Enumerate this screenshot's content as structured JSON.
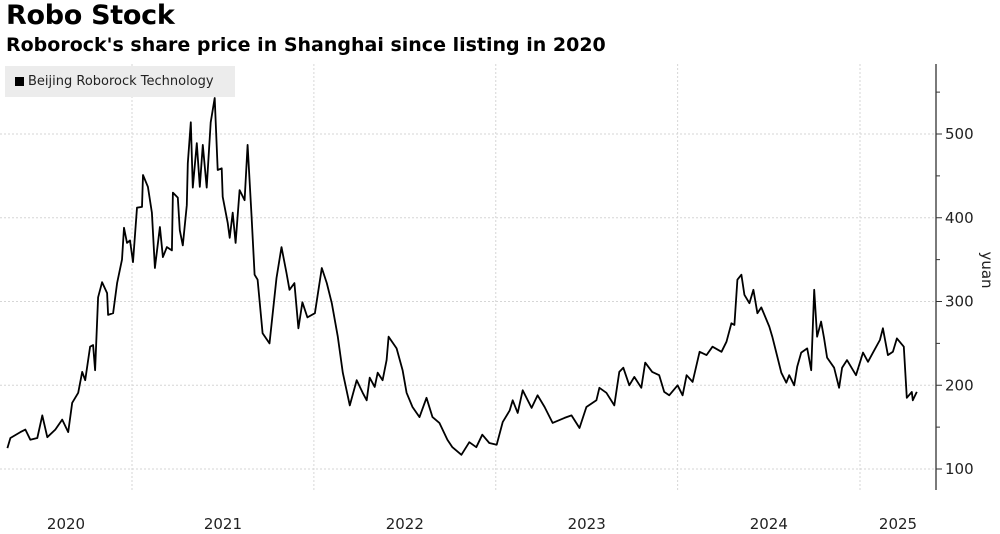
{
  "chart_data": {
    "type": "line",
    "title": "Robo Stock",
    "subtitle": "Roborock's share price in Shanghai since listing in 2020",
    "ylabel": "yuan",
    "xlabel": "",
    "ylim": [
      75,
      584
    ],
    "yticks": [
      100,
      200,
      300,
      400,
      500
    ],
    "xticks": [
      "2020",
      "2021",
      "2022",
      "2023",
      "2024",
      "2025"
    ],
    "y_axis_side": "right",
    "grid": true,
    "legend_position": "top-left",
    "series": [
      {
        "name": "Beijing Roborock Technology",
        "color": "#000000",
        "points": [
          [
            "2020-04-26",
            125
          ],
          [
            "2020-05-02",
            137
          ],
          [
            "2020-05-22",
            144
          ],
          [
            "2020-06-01",
            147
          ],
          [
            "2020-06-11",
            135
          ],
          [
            "2020-06-25",
            137
          ],
          [
            "2020-07-05",
            164
          ],
          [
            "2020-07-15",
            138
          ],
          [
            "2020-07-31",
            147
          ],
          [
            "2020-08-14",
            159
          ],
          [
            "2020-08-26",
            144
          ],
          [
            "2020-09-03",
            179
          ],
          [
            "2020-09-15",
            191
          ],
          [
            "2020-09-23",
            216
          ],
          [
            "2020-09-29",
            206
          ],
          [
            "2020-10-09",
            246
          ],
          [
            "2020-10-15",
            248
          ],
          [
            "2020-10-19",
            218
          ],
          [
            "2020-10-25",
            305
          ],
          [
            "2020-11-02",
            323
          ],
          [
            "2020-11-12",
            310
          ],
          [
            "2020-11-14",
            284
          ],
          [
            "2020-11-24",
            286
          ],
          [
            "2020-12-02",
            322
          ],
          [
            "2020-12-12",
            350
          ],
          [
            "2020-12-16",
            388
          ],
          [
            "2020-12-22",
            370
          ],
          [
            "2020-12-28",
            373
          ],
          [
            "2021-01-03",
            347
          ],
          [
            "2021-01-11",
            412
          ],
          [
            "2021-01-21",
            413
          ],
          [
            "2021-01-23",
            451
          ],
          [
            "2021-02-02",
            437
          ],
          [
            "2021-02-10",
            406
          ],
          [
            "2021-02-16",
            340
          ],
          [
            "2021-02-26",
            389
          ],
          [
            "2021-03-04",
            353
          ],
          [
            "2021-03-12",
            365
          ],
          [
            "2021-03-22",
            361
          ],
          [
            "2021-03-24",
            430
          ],
          [
            "2021-04-03",
            424
          ],
          [
            "2021-04-07",
            385
          ],
          [
            "2021-04-13",
            367
          ],
          [
            "2021-04-21",
            415
          ],
          [
            "2021-04-23",
            465
          ],
          [
            "2021-04-29",
            514
          ],
          [
            "2021-05-03",
            436
          ],
          [
            "2021-05-11",
            489
          ],
          [
            "2021-05-17",
            437
          ],
          [
            "2021-05-23",
            487
          ],
          [
            "2021-05-31",
            436
          ],
          [
            "2021-06-08",
            514
          ],
          [
            "2021-06-16",
            543
          ],
          [
            "2021-06-22",
            457
          ],
          [
            "2021-06-30",
            459
          ],
          [
            "2021-07-02",
            425
          ],
          [
            "2021-07-12",
            394
          ],
          [
            "2021-07-16",
            376
          ],
          [
            "2021-07-22",
            406
          ],
          [
            "2021-07-28",
            370
          ],
          [
            "2021-08-05",
            433
          ],
          [
            "2021-08-15",
            421
          ],
          [
            "2021-08-21",
            487
          ],
          [
            "2021-08-29",
            401
          ],
          [
            "2021-09-04",
            332
          ],
          [
            "2021-09-10",
            326
          ],
          [
            "2021-09-20",
            262
          ],
          [
            "2021-10-04",
            250
          ],
          [
            "2021-10-18",
            328
          ],
          [
            "2021-10-28",
            365
          ],
          [
            "2021-11-07",
            334
          ],
          [
            "2021-11-13",
            314
          ],
          [
            "2021-11-23",
            322
          ],
          [
            "2021-12-01",
            268
          ],
          [
            "2021-12-09",
            299
          ],
          [
            "2021-12-19",
            281
          ],
          [
            "2022-01-03",
            286
          ],
          [
            "2022-01-17",
            340
          ],
          [
            "2022-01-27",
            322
          ],
          [
            "2022-02-06",
            298
          ],
          [
            "2022-02-18",
            258
          ],
          [
            "2022-02-28",
            215
          ],
          [
            "2022-03-14",
            176
          ],
          [
            "2022-03-28",
            206
          ],
          [
            "2022-04-09",
            191
          ],
          [
            "2022-04-17",
            182
          ],
          [
            "2022-04-23",
            209
          ],
          [
            "2022-05-03",
            198
          ],
          [
            "2022-05-09",
            215
          ],
          [
            "2022-05-19",
            206
          ],
          [
            "2022-05-27",
            230
          ],
          [
            "2022-05-31",
            258
          ],
          [
            "2022-06-16",
            244
          ],
          [
            "2022-06-28",
            218
          ],
          [
            "2022-07-06",
            191
          ],
          [
            "2022-07-18",
            174
          ],
          [
            "2022-08-01",
            162
          ],
          [
            "2022-08-15",
            185
          ],
          [
            "2022-08-27",
            162
          ],
          [
            "2022-09-10",
            155
          ],
          [
            "2022-09-26",
            135
          ],
          [
            "2022-10-06",
            126
          ],
          [
            "2022-10-24",
            117
          ],
          [
            "2022-11-09",
            132
          ],
          [
            "2022-11-23",
            126
          ],
          [
            "2022-12-05",
            141
          ],
          [
            "2022-12-19",
            131
          ],
          [
            "2023-01-03",
            129
          ],
          [
            "2023-01-15",
            156
          ],
          [
            "2023-01-29",
            170
          ],
          [
            "2023-02-04",
            182
          ],
          [
            "2023-02-14",
            167
          ],
          [
            "2023-02-24",
            194
          ],
          [
            "2023-03-14",
            173
          ],
          [
            "2023-03-26",
            188
          ],
          [
            "2023-04-09",
            174
          ],
          [
            "2023-04-25",
            155
          ],
          [
            "2023-05-19",
            161
          ],
          [
            "2023-06-02",
            164
          ],
          [
            "2023-06-18",
            149
          ],
          [
            "2023-07-02",
            174
          ],
          [
            "2023-07-22",
            182
          ],
          [
            "2023-07-28",
            197
          ],
          [
            "2023-08-11",
            191
          ],
          [
            "2023-08-27",
            176
          ],
          [
            "2023-09-06",
            216
          ],
          [
            "2023-09-14",
            221
          ],
          [
            "2023-09-26",
            200
          ],
          [
            "2023-10-06",
            210
          ],
          [
            "2023-10-20",
            197
          ],
          [
            "2023-10-28",
            227
          ],
          [
            "2023-11-11",
            216
          ],
          [
            "2023-11-25",
            212
          ],
          [
            "2023-12-05",
            192
          ],
          [
            "2023-12-15",
            188
          ],
          [
            "2024-01-01",
            200
          ],
          [
            "2024-01-11",
            188
          ],
          [
            "2024-01-19",
            212
          ],
          [
            "2024-01-31",
            204
          ],
          [
            "2024-02-14",
            240
          ],
          [
            "2024-02-28",
            236
          ],
          [
            "2024-03-11",
            246
          ],
          [
            "2024-03-29",
            240
          ],
          [
            "2024-04-08",
            252
          ],
          [
            "2024-04-18",
            274
          ],
          [
            "2024-04-24",
            272
          ],
          [
            "2024-04-30",
            326
          ],
          [
            "2024-05-08",
            332
          ],
          [
            "2024-05-14",
            308
          ],
          [
            "2024-05-24",
            298
          ],
          [
            "2024-06-01",
            314
          ],
          [
            "2024-06-09",
            286
          ],
          [
            "2024-06-17",
            293
          ],
          [
            "2024-07-03",
            270
          ],
          [
            "2024-07-09",
            258
          ],
          [
            "2024-07-17",
            239
          ],
          [
            "2024-07-27",
            215
          ],
          [
            "2024-08-06",
            203
          ],
          [
            "2024-08-12",
            212
          ],
          [
            "2024-08-22",
            200
          ],
          [
            "2024-08-28",
            222
          ],
          [
            "2024-09-05",
            239
          ],
          [
            "2024-09-17",
            244
          ],
          [
            "2024-09-25",
            218
          ],
          [
            "2024-10-01",
            314
          ],
          [
            "2024-10-07",
            258
          ],
          [
            "2024-10-15",
            276
          ],
          [
            "2024-10-21",
            256
          ],
          [
            "2024-10-27",
            233
          ],
          [
            "2024-11-10",
            221
          ],
          [
            "2024-11-20",
            197
          ],
          [
            "2024-11-26",
            221
          ],
          [
            "2024-12-06",
            230
          ],
          [
            "2024-12-24",
            212
          ],
          [
            "2025-01-07",
            239
          ],
          [
            "2025-01-17",
            228
          ],
          [
            "2025-01-27",
            239
          ],
          [
            "2025-02-10",
            254
          ],
          [
            "2025-02-16",
            268
          ],
          [
            "2025-02-26",
            236
          ],
          [
            "2025-03-08",
            240
          ],
          [
            "2025-03-16",
            256
          ],
          [
            "2025-03-30",
            246
          ],
          [
            "2025-04-05",
            185
          ],
          [
            "2025-04-15",
            192
          ],
          [
            "2025-04-17",
            182
          ],
          [
            "2025-04-25",
            192
          ]
        ]
      }
    ]
  }
}
